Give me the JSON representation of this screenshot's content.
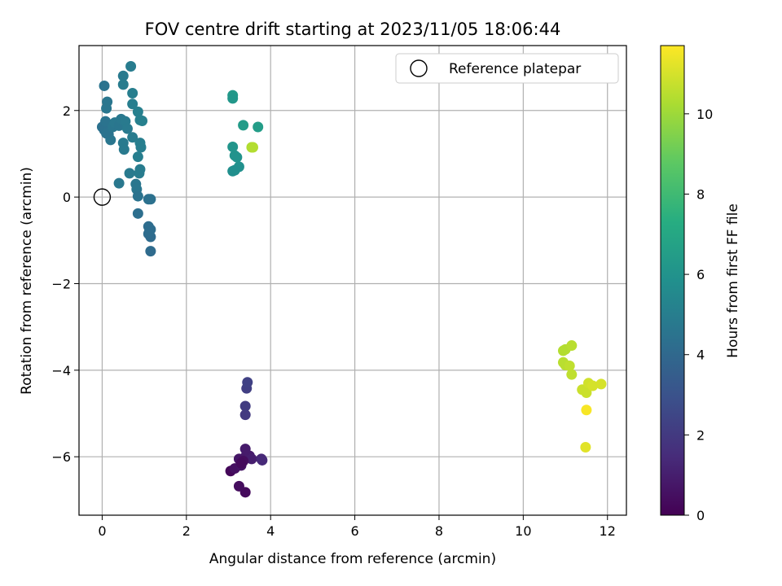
{
  "chart_data": {
    "type": "scatter",
    "title": "FOV centre drift starting at 2023/11/05 18:06:44",
    "xlabel": "Angular distance from reference (arcmin)",
    "ylabel": "Rotation from reference (arcmin)",
    "colorbar_label": "Hours from first FF file",
    "xlim": [
      -0.55,
      12.45
    ],
    "ylim": [
      -7.35,
      3.5
    ],
    "xticks": [
      0,
      2,
      4,
      6,
      8,
      10,
      12
    ],
    "yticks": [
      -6,
      -4,
      -2,
      0,
      2
    ],
    "xtick_labels": [
      "0",
      "2",
      "4",
      "6",
      "8",
      "10",
      "12"
    ],
    "ytick_labels": [
      "−6",
      "−4",
      "−2",
      "0",
      "2"
    ],
    "colorbar_range": [
      0,
      11.7
    ],
    "colorbar_ticks": [
      0,
      2,
      4,
      6,
      8,
      10
    ],
    "colorbar_tick_labels": [
      "0",
      "2",
      "4",
      "6",
      "8",
      "10"
    ],
    "colormap": "viridis",
    "grid": true,
    "legend": {
      "position": "top-right",
      "entries": [
        "Reference platepar"
      ]
    },
    "reference": {
      "x": 0,
      "y": 0,
      "label": "Reference platepar"
    },
    "points": [
      {
        "x": 3.4,
        "y": -6.82,
        "t": 0.3
      },
      {
        "x": 3.25,
        "y": -6.68,
        "t": 0.4
      },
      {
        "x": 3.05,
        "y": -6.33,
        "t": 0.2
      },
      {
        "x": 3.15,
        "y": -6.27,
        "t": 0.5
      },
      {
        "x": 3.3,
        "y": -6.2,
        "t": 0.6
      },
      {
        "x": 3.25,
        "y": -6.05,
        "t": 0.7
      },
      {
        "x": 3.4,
        "y": -6.0,
        "t": 0.8
      },
      {
        "x": 3.5,
        "y": -5.98,
        "t": 0.9
      },
      {
        "x": 3.55,
        "y": -6.05,
        "t": 1.0
      },
      {
        "x": 3.35,
        "y": -6.1,
        "t": 0.4
      },
      {
        "x": 3.4,
        "y": -5.82,
        "t": 0.9
      },
      {
        "x": 3.78,
        "y": -6.05,
        "t": 1.3
      },
      {
        "x": 3.8,
        "y": -6.08,
        "t": 1.4
      },
      {
        "x": 3.3,
        "y": -6.15,
        "t": 0.3
      },
      {
        "x": 3.4,
        "y": -5.03,
        "t": 2.0
      },
      {
        "x": 3.4,
        "y": -4.83,
        "t": 2.1
      },
      {
        "x": 3.43,
        "y": -4.42,
        "t": 2.2
      },
      {
        "x": 3.45,
        "y": -4.28,
        "t": 2.3
      },
      {
        "x": 0.05,
        "y": 2.57,
        "t": 4.5
      },
      {
        "x": 0.12,
        "y": 2.2,
        "t": 4.6
      },
      {
        "x": 0.1,
        "y": 2.05,
        "t": 4.6
      },
      {
        "x": 0.0,
        "y": 1.62,
        "t": 4.4
      },
      {
        "x": 0.05,
        "y": 1.55,
        "t": 4.4
      },
      {
        "x": 0.08,
        "y": 1.75,
        "t": 4.5
      },
      {
        "x": 0.15,
        "y": 1.45,
        "t": 4.5
      },
      {
        "x": 0.2,
        "y": 1.32,
        "t": 4.6
      },
      {
        "x": 0.1,
        "y": 1.47,
        "t": 4.5
      },
      {
        "x": 0.25,
        "y": 1.62,
        "t": 4.6
      },
      {
        "x": 0.3,
        "y": 1.72,
        "t": 4.7
      },
      {
        "x": 0.4,
        "y": 1.65,
        "t": 4.6
      },
      {
        "x": 0.45,
        "y": 1.8,
        "t": 4.7
      },
      {
        "x": 0.55,
        "y": 1.75,
        "t": 4.8
      },
      {
        "x": 0.6,
        "y": 1.58,
        "t": 4.8
      },
      {
        "x": 0.5,
        "y": 2.8,
        "t": 4.8
      },
      {
        "x": 0.5,
        "y": 2.6,
        "t": 4.9
      },
      {
        "x": 0.68,
        "y": 3.02,
        "t": 4.9
      },
      {
        "x": 0.72,
        "y": 2.4,
        "t": 5.0
      },
      {
        "x": 0.72,
        "y": 2.15,
        "t": 5.0
      },
      {
        "x": 0.85,
        "y": 1.97,
        "t": 5.1
      },
      {
        "x": 0.9,
        "y": 1.78,
        "t": 5.1
      },
      {
        "x": 0.95,
        "y": 1.76,
        "t": 5.1
      },
      {
        "x": 0.72,
        "y": 1.38,
        "t": 4.9
      },
      {
        "x": 0.5,
        "y": 1.25,
        "t": 4.8
      },
      {
        "x": 0.52,
        "y": 1.1,
        "t": 4.8
      },
      {
        "x": 0.9,
        "y": 1.25,
        "t": 5.0
      },
      {
        "x": 0.92,
        "y": 1.15,
        "t": 5.0
      },
      {
        "x": 0.85,
        "y": 0.93,
        "t": 5.0
      },
      {
        "x": 0.9,
        "y": 0.64,
        "t": 4.9
      },
      {
        "x": 0.88,
        "y": 0.55,
        "t": 4.9
      },
      {
        "x": 0.65,
        "y": 0.55,
        "t": 4.8
      },
      {
        "x": 0.4,
        "y": 0.32,
        "t": 4.7
      },
      {
        "x": 0.8,
        "y": 0.3,
        "t": 4.6
      },
      {
        "x": 0.82,
        "y": 0.18,
        "t": 4.6
      },
      {
        "x": 0.85,
        "y": 0.02,
        "t": 4.5
      },
      {
        "x": 1.1,
        "y": -0.05,
        "t": 4.4
      },
      {
        "x": 1.15,
        "y": -0.05,
        "t": 4.4
      },
      {
        "x": 0.85,
        "y": -0.38,
        "t": 4.3
      },
      {
        "x": 1.1,
        "y": -0.68,
        "t": 4.2
      },
      {
        "x": 1.15,
        "y": -0.75,
        "t": 4.2
      },
      {
        "x": 1.1,
        "y": -0.85,
        "t": 4.2
      },
      {
        "x": 1.15,
        "y": -0.92,
        "t": 4.1
      },
      {
        "x": 1.15,
        "y": -1.25,
        "t": 4.1
      },
      {
        "x": 1.12,
        "y": -0.8,
        "t": 4.2
      },
      {
        "x": 3.1,
        "y": 2.35,
        "t": 6.3
      },
      {
        "x": 3.1,
        "y": 2.28,
        "t": 6.2
      },
      {
        "x": 3.35,
        "y": 1.66,
        "t": 6.4
      },
      {
        "x": 3.7,
        "y": 1.62,
        "t": 6.5
      },
      {
        "x": 3.1,
        "y": 1.16,
        "t": 6.1
      },
      {
        "x": 3.15,
        "y": 0.96,
        "t": 6.0
      },
      {
        "x": 3.2,
        "y": 0.92,
        "t": 6.0
      },
      {
        "x": 3.25,
        "y": 0.7,
        "t": 5.9
      },
      {
        "x": 3.1,
        "y": 0.6,
        "t": 5.8
      },
      {
        "x": 3.15,
        "y": 0.62,
        "t": 5.8
      },
      {
        "x": 3.55,
        "y": 1.15,
        "t": 10.3
      },
      {
        "x": 3.58,
        "y": 1.15,
        "t": 10.4
      },
      {
        "x": 10.95,
        "y": -3.55,
        "t": 10.4
      },
      {
        "x": 11.0,
        "y": -3.52,
        "t": 10.4
      },
      {
        "x": 11.15,
        "y": -3.43,
        "t": 10.5
      },
      {
        "x": 10.95,
        "y": -3.82,
        "t": 10.5
      },
      {
        "x": 11.0,
        "y": -3.88,
        "t": 10.5
      },
      {
        "x": 11.1,
        "y": -3.9,
        "t": 10.6
      },
      {
        "x": 11.15,
        "y": -4.1,
        "t": 10.6
      },
      {
        "x": 11.4,
        "y": -4.45,
        "t": 10.8
      },
      {
        "x": 11.5,
        "y": -4.52,
        "t": 10.8
      },
      {
        "x": 11.55,
        "y": -4.3,
        "t": 10.9
      },
      {
        "x": 11.65,
        "y": -4.36,
        "t": 11.0
      },
      {
        "x": 11.85,
        "y": -4.32,
        "t": 11.0
      },
      {
        "x": 11.5,
        "y": -4.92,
        "t": 11.6
      },
      {
        "x": 11.48,
        "y": -5.78,
        "t": 11.2
      }
    ]
  }
}
